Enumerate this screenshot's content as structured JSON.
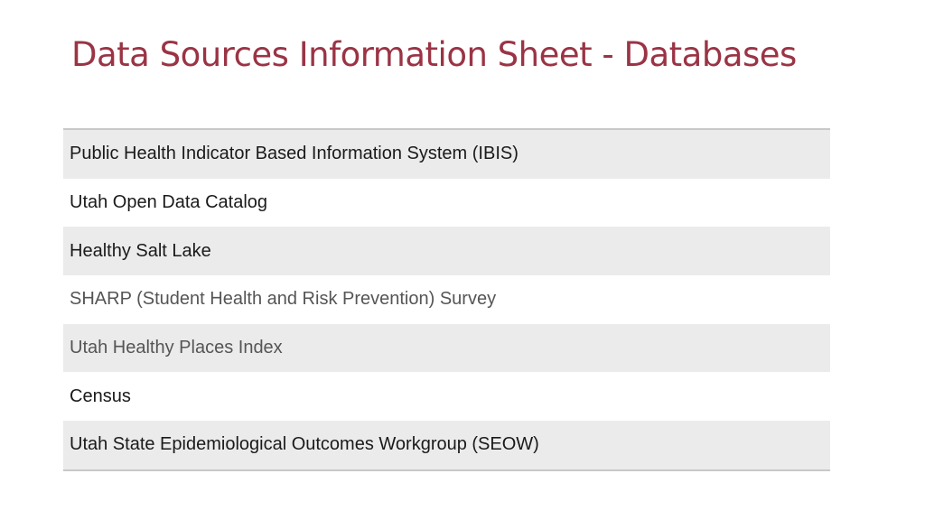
{
  "slide": {
    "title": "Data Sources Information Sheet - Databases"
  },
  "table": {
    "rows": [
      {
        "label": "Public Health Indicator Based Information System (IBIS)"
      },
      {
        "label": "Utah Open Data Catalog"
      },
      {
        "label": "Healthy Salt Lake"
      },
      {
        "label": "SHARP (Student Health and Risk Prevention) Survey"
      },
      {
        "label": "Utah Healthy Places Index"
      },
      {
        "label": "Census"
      },
      {
        "label": "Utah State Epidemiological Outcomes Workgroup (SEOW)"
      }
    ]
  },
  "colors": {
    "title": "#9a3445",
    "row_shade": "#ebebeb",
    "rule": "#c8c8c8"
  }
}
